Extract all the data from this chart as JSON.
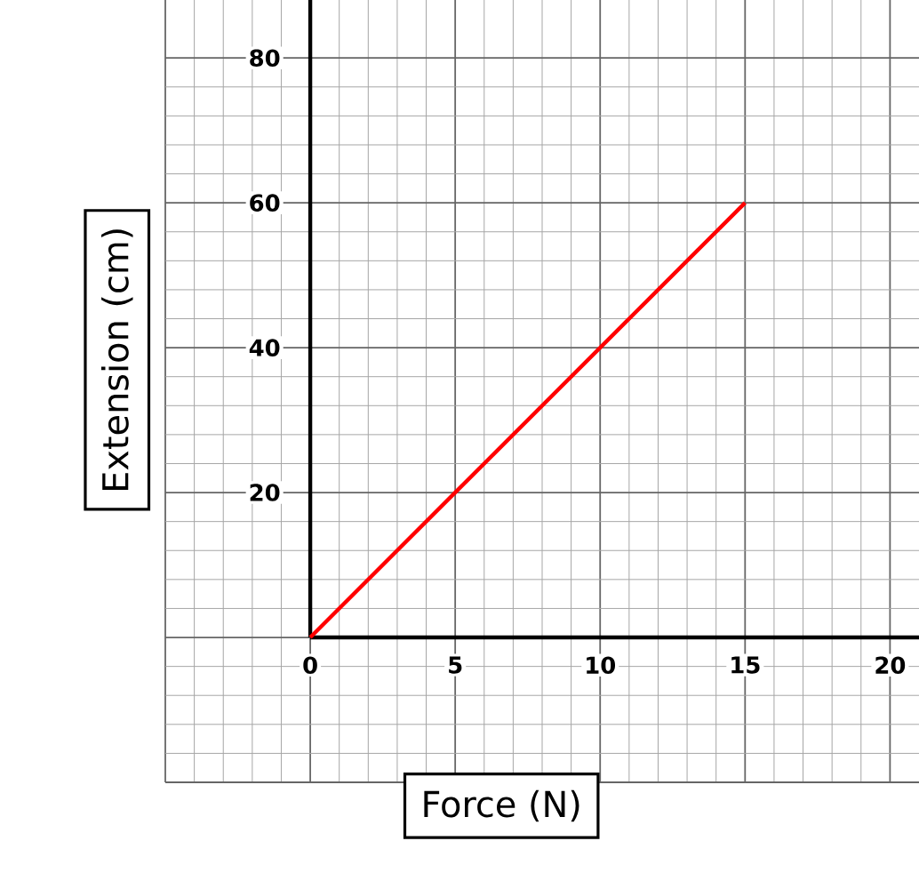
{
  "chart_data": {
    "type": "line",
    "xlabel": "Force (N)",
    "ylabel": "Extension (cm)",
    "x": [
      0,
      15
    ],
    "series": [
      {
        "color": "#ff0000",
        "values": [
          0,
          60
        ]
      }
    ],
    "xlim": [
      -5,
      21
    ],
    "ylim": [
      -20,
      88
    ],
    "xticks": [
      {
        "value": -5,
        "label": null
      },
      0,
      5,
      10,
      15,
      20
    ],
    "yticks": [
      {
        "value": -20,
        "label": null
      },
      {
        "value": 0,
        "label": null
      },
      20,
      40,
      60,
      80
    ],
    "grid": true,
    "marker": "none"
  }
}
